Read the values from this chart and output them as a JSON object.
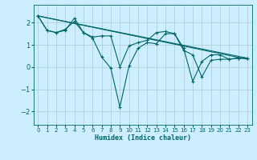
{
  "xlabel": "Humidex (Indice chaleur)",
  "bg_color": "#cceeff",
  "grid_color": "#aacccc",
  "line_color": "#006666",
  "xlim": [
    -0.5,
    23.5
  ],
  "ylim": [
    -2.6,
    2.8
  ],
  "yticks": [
    -2,
    -1,
    0,
    1,
    2
  ],
  "xticks": [
    0,
    1,
    2,
    3,
    4,
    5,
    6,
    7,
    8,
    9,
    10,
    11,
    12,
    13,
    14,
    15,
    16,
    17,
    18,
    19,
    20,
    21,
    22,
    23
  ],
  "series": [
    {
      "x": [
        0,
        1,
        2,
        3,
        4,
        5,
        6,
        7,
        8,
        9,
        10,
        11,
        12,
        13,
        14,
        15,
        16,
        17,
        18,
        19,
        20,
        21,
        22,
        23
      ],
      "y": [
        2.3,
        1.65,
        1.55,
        1.7,
        2.05,
        1.55,
        1.3,
        0.45,
        -0.05,
        -1.8,
        0.05,
        0.85,
        1.1,
        1.05,
        1.5,
        1.5,
        0.75,
        0.55,
        -0.45,
        0.3,
        0.35,
        0.35,
        0.4,
        0.4
      ],
      "markers": true
    },
    {
      "x": [
        0,
        1,
        2,
        3,
        4,
        5,
        6,
        7,
        8,
        9,
        10,
        11,
        12,
        13,
        14,
        15,
        16,
        17,
        18,
        19,
        20,
        21,
        22,
        23
      ],
      "y": [
        2.3,
        1.65,
        1.55,
        1.65,
        2.2,
        1.55,
        1.35,
        1.4,
        1.4,
        0.0,
        0.95,
        1.1,
        1.2,
        1.55,
        1.6,
        1.5,
        0.85,
        -0.65,
        0.25,
        0.55,
        0.55,
        0.35,
        0.4,
        0.4
      ],
      "markers": true
    },
    {
      "x": [
        0,
        23
      ],
      "y": [
        2.3,
        0.4
      ],
      "markers": false
    },
    {
      "x": [
        0,
        23
      ],
      "y": [
        2.3,
        0.35
      ],
      "markers": false
    }
  ]
}
